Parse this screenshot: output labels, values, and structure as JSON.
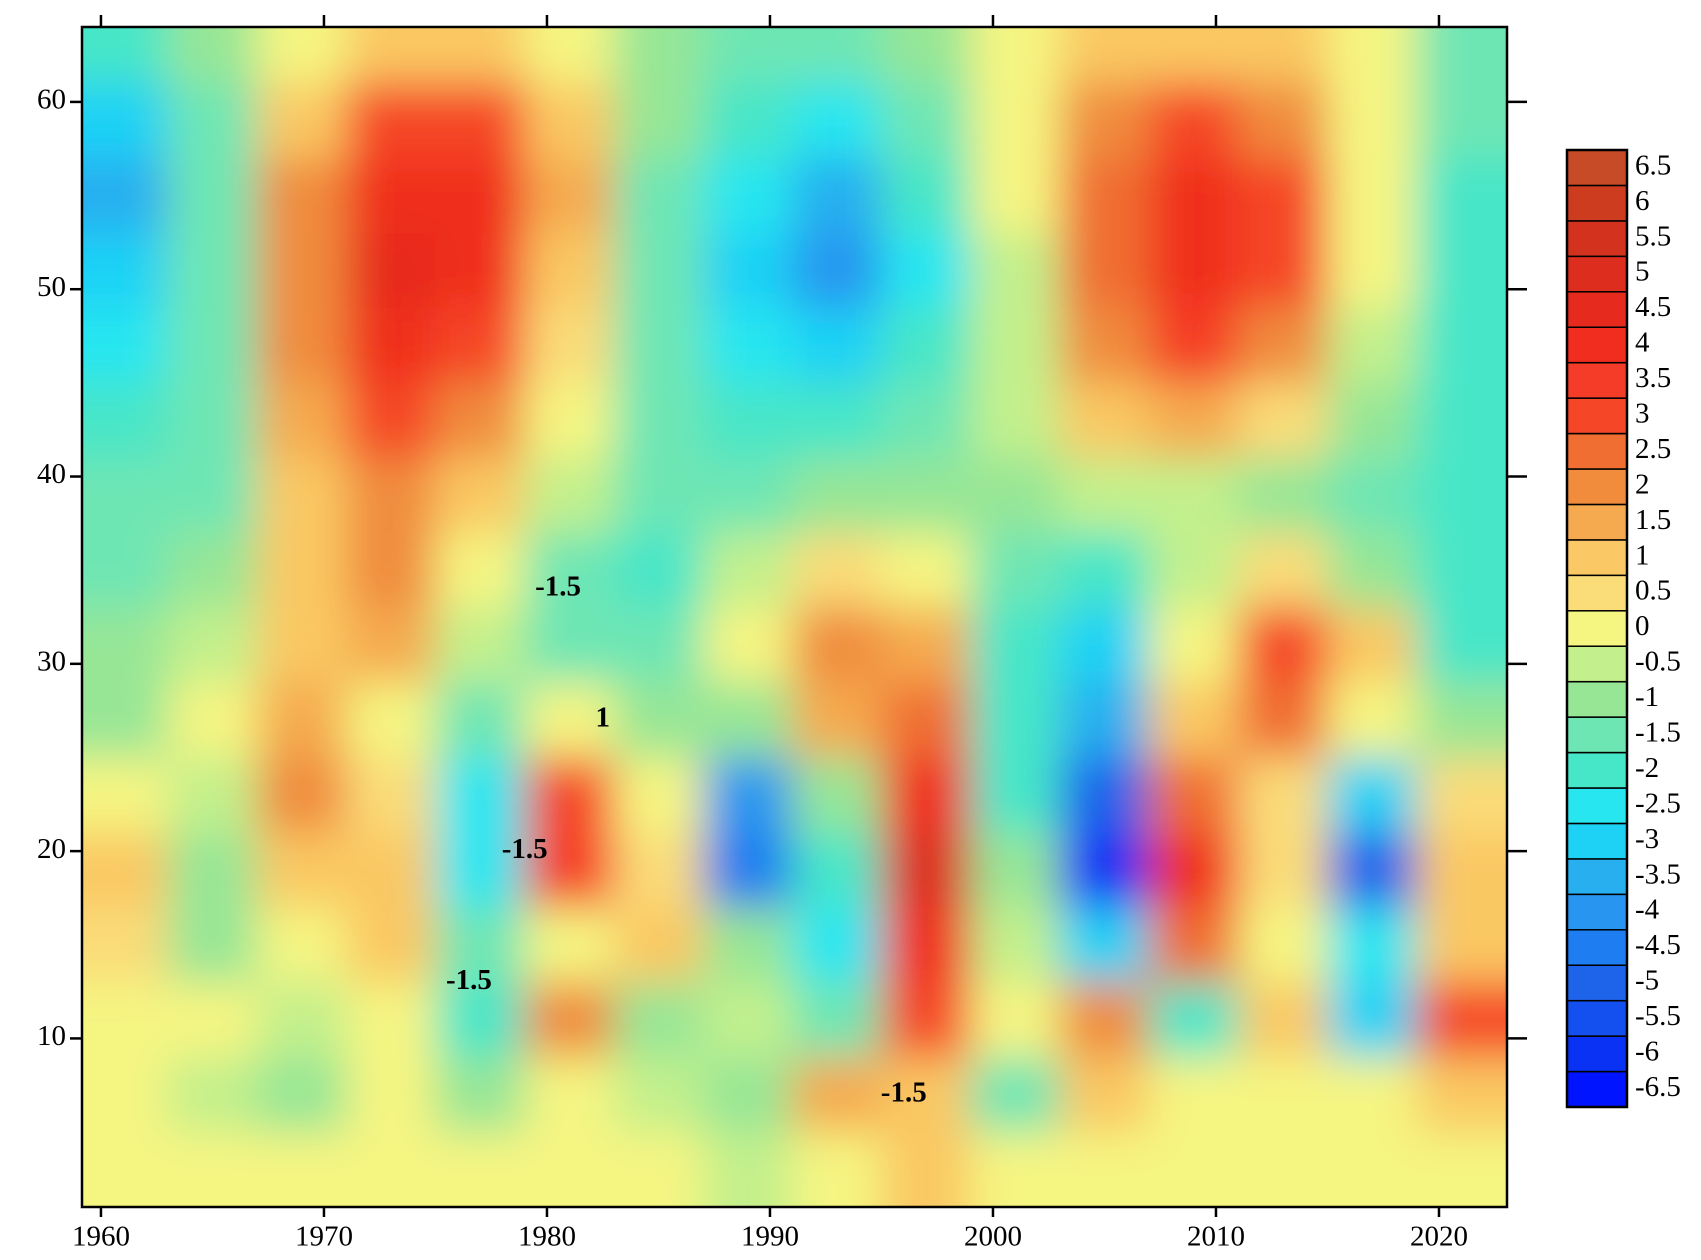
{
  "chart_data": {
    "type": "heatmap",
    "x": [
      1961,
      1965,
      1969,
      1973,
      1977,
      1981,
      1985,
      1989,
      1993,
      1997,
      2001,
      2005,
      2009,
      2013,
      2017,
      2021
    ],
    "y": [
      63,
      59,
      55,
      51,
      47,
      43,
      39,
      35,
      31,
      27,
      23,
      19,
      15,
      11,
      7,
      3
    ],
    "z": [
      [
        -2,
        -1,
        0,
        1,
        1,
        0,
        -1,
        -1.5,
        -1.5,
        -1,
        0,
        1,
        1,
        1,
        0,
        -1.5
      ],
      [
        -3,
        -1.5,
        1,
        3,
        3,
        1,
        -1,
        -2,
        -2.5,
        -1.5,
        0,
        2,
        3,
        2,
        0,
        -1.5
      ],
      [
        -3.5,
        -1.5,
        2,
        4,
        4,
        1.5,
        -1.5,
        -2.5,
        -3.5,
        -2,
        0,
        2.5,
        4,
        3,
        0,
        -2
      ],
      [
        -3,
        -1.5,
        2,
        4.5,
        4,
        1,
        -1.5,
        -3,
        -4,
        -2.5,
        -0.5,
        2.5,
        4,
        3,
        0,
        -2
      ],
      [
        -2.5,
        -1.5,
        2,
        4,
        3,
        0.5,
        -1.5,
        -2.5,
        -3,
        -2,
        -0.5,
        2,
        3.5,
        2,
        -0.5,
        -2
      ],
      [
        -2,
        -1.5,
        1.5,
        3,
        2,
        0,
        -1.5,
        -2,
        -2,
        -1.5,
        -0.5,
        1,
        1.5,
        0.5,
        -1,
        -2
      ],
      [
        -1.5,
        -1.5,
        1,
        2,
        1,
        -0.5,
        -1.5,
        -1.5,
        -1,
        -1,
        -1,
        -0.5,
        -0.5,
        -1,
        -1.5,
        -2
      ],
      [
        -1.5,
        -1,
        1,
        2,
        0,
        -1.5,
        -2,
        -0.5,
        0.5,
        0,
        -1.5,
        -2,
        -0.5,
        0.5,
        -1,
        -2
      ],
      [
        -1,
        -0.5,
        1,
        1.5,
        -0.5,
        -1.5,
        -1.5,
        0,
        2,
        1.5,
        -2,
        -3,
        0,
        3,
        1,
        -2
      ],
      [
        -1,
        0,
        1.5,
        0,
        -1.5,
        0,
        -1,
        -1,
        1.5,
        2.5,
        -2,
        -3.5,
        1,
        2.5,
        0,
        -1
      ],
      [
        0,
        -0.5,
        2,
        0.5,
        -2.5,
        3,
        0,
        -4,
        -1,
        4,
        -2,
        -5,
        2.5,
        0.5,
        -3,
        0.5
      ],
      [
        1,
        -1,
        1,
        1,
        -2.5,
        3.5,
        0.5,
        -4.5,
        -2,
        5,
        -1,
        -6,
        4,
        0.5,
        -5,
        1
      ],
      [
        0.5,
        -1,
        0,
        1,
        -1.5,
        0,
        1,
        -1,
        -2.5,
        4,
        -0.5,
        -3,
        2.5,
        0,
        -2.5,
        1
      ],
      [
        0,
        0,
        -0.5,
        0,
        -2,
        2,
        -1,
        -0.5,
        -1.5,
        3,
        0,
        2,
        -2,
        1,
        -3,
        3
      ],
      [
        0,
        -0.5,
        -1,
        0,
        -1,
        0,
        -0.5,
        -1,
        1.5,
        1,
        -1.5,
        1,
        0,
        0,
        0,
        1
      ],
      [
        0,
        0,
        0,
        0,
        0,
        0,
        0,
        -0.5,
        0,
        1,
        0,
        0,
        0,
        0,
        0,
        0
      ]
    ],
    "xlim": [
      1959.15,
      2023.05
    ],
    "ylim": [
      1,
      64
    ],
    "xticks": [
      1960,
      1970,
      1980,
      1990,
      2000,
      2010,
      2020
    ],
    "yticks": [
      10,
      20,
      30,
      40,
      50,
      60
    ],
    "levels": [
      -6.5,
      -6,
      -5.5,
      -5,
      -4.5,
      -4,
      -3.5,
      -3,
      -2.5,
      -2,
      -1.5,
      -1,
      -0.5,
      0,
      0.5,
      1,
      1.5,
      2,
      2.5,
      3,
      3.5,
      4,
      4.5,
      5,
      5.5,
      6,
      6.5
    ],
    "colors": [
      "#0014ff",
      "#0a32f5",
      "#1450f0",
      "#1e64eb",
      "#1e7df0",
      "#2896f0",
      "#28aff0",
      "#1ed2f5",
      "#28e6f0",
      "#46e6c8",
      "#6ee6b4",
      "#96e696",
      "#c3f08c",
      "#f5f582",
      "#fadc78",
      "#fac864",
      "#f5aa50",
      "#f08c3c",
      "#f06e32",
      "#f54628",
      "#f53c28",
      "#f02d1e",
      "#e62a1e",
      "#dc2d1e",
      "#d2321e",
      "#cd3c1e",
      "#c84b28"
    ],
    "annotations": [
      {
        "text": "-1.5",
        "x": 1980.5,
        "y": 34
      },
      {
        "text": "1",
        "x": 1982.5,
        "y": 27
      },
      {
        "text": "-1.5",
        "x": 1979,
        "y": 20
      },
      {
        "text": "-1.5",
        "x": 1976.5,
        "y": 13
      },
      {
        "text": "-1.5",
        "x": 1996,
        "y": 7
      }
    ]
  }
}
